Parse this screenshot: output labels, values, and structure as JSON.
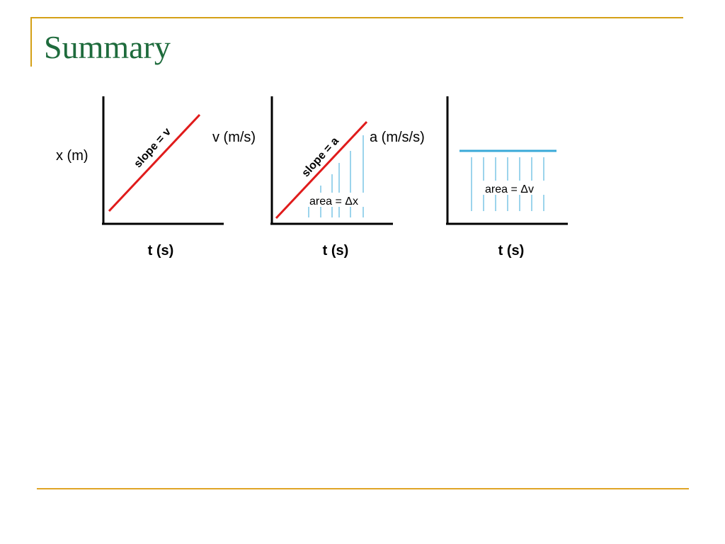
{
  "slide": {
    "title": "Summary",
    "accent_color": "#d4a017",
    "title_color": "#1e6b3c"
  },
  "graphs": [
    {
      "y_label": "x (m)",
      "x_label": "t (s)",
      "annotation": "slope = v"
    },
    {
      "y_label": "v (m/s)",
      "x_label": "t (s)",
      "annotation": "slope = a",
      "area_label": "area = Δx"
    },
    {
      "y_label": "a (m/s/s)",
      "x_label": "t (s)",
      "area_label": "area = Δv"
    }
  ],
  "colors": {
    "line_red": "#e01b1b",
    "area_blue": "#3aa9d8",
    "axis": "#000000"
  }
}
